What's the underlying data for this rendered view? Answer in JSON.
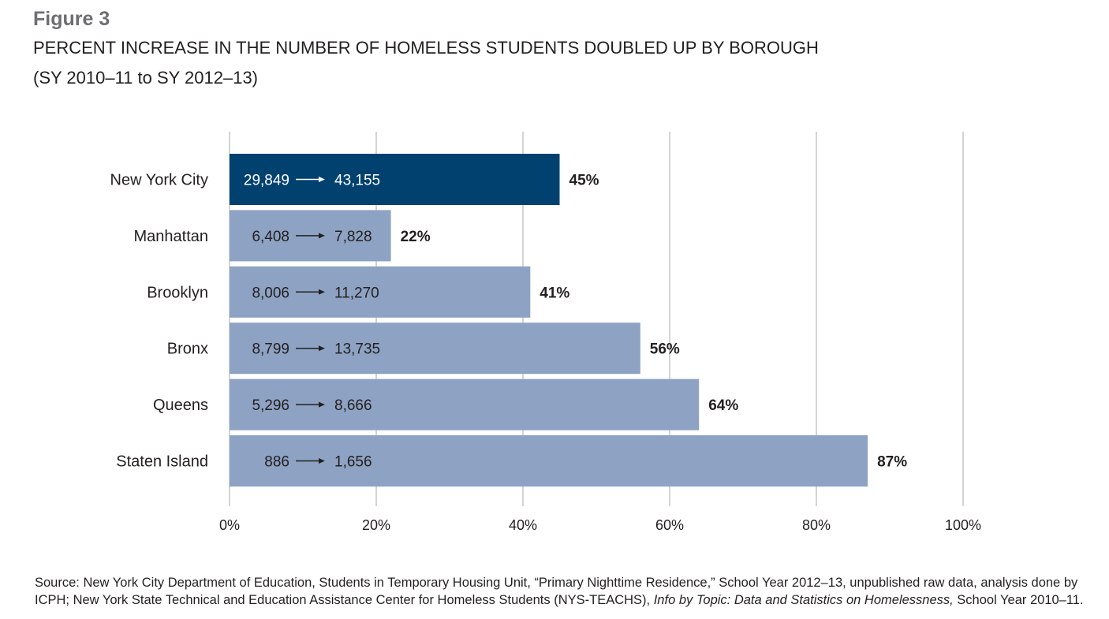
{
  "figure_label": "Figure 3",
  "title": "PERCENT INCREASE IN THE NUMBER OF HOMELESS STUDENTS DOUBLED UP BY BOROUGH",
  "subtitle": "(SY 2010–11 to SY 2012–13)",
  "source": {
    "text_before": "Source: New York City Department of Education, Students in Temporary Housing Unit, “Primary Nighttime Residence,” School Year 2012–13, unpublished raw data, analysis done by ICPH; New York State Technical and Education Assistance Center for Homeless Students (NYS-TEACHS), ",
    "italic": "Info by Topic: Data and Statistics on Homelessness,",
    "text_after": " School Year 2010–11."
  },
  "chart_data": {
    "type": "bar",
    "orientation": "horizontal",
    "categories": [
      "New York City",
      "Manhattan",
      "Brooklyn",
      "Bronx",
      "Queens",
      "Staten Island"
    ],
    "values": [
      45,
      22,
      41,
      56,
      64,
      87
    ],
    "value_labels": [
      "45%",
      "22%",
      "41%",
      "56%",
      "64%",
      "87%"
    ],
    "start_labels": [
      "29,849",
      "6,408",
      "8,006",
      "8,799",
      "5,296",
      "886"
    ],
    "end_labels": [
      "43,155",
      "7,828",
      "11,270",
      "13,735",
      "8,666",
      "1,656"
    ],
    "xlim": [
      0,
      100
    ],
    "xticks": [
      "0%",
      "20%",
      "40%",
      "60%",
      "80%",
      "100%"
    ],
    "grid": true,
    "colors": {
      "highlight": "#004170",
      "default": "#8ea3c3",
      "grid": "#a7a9ac"
    }
  }
}
